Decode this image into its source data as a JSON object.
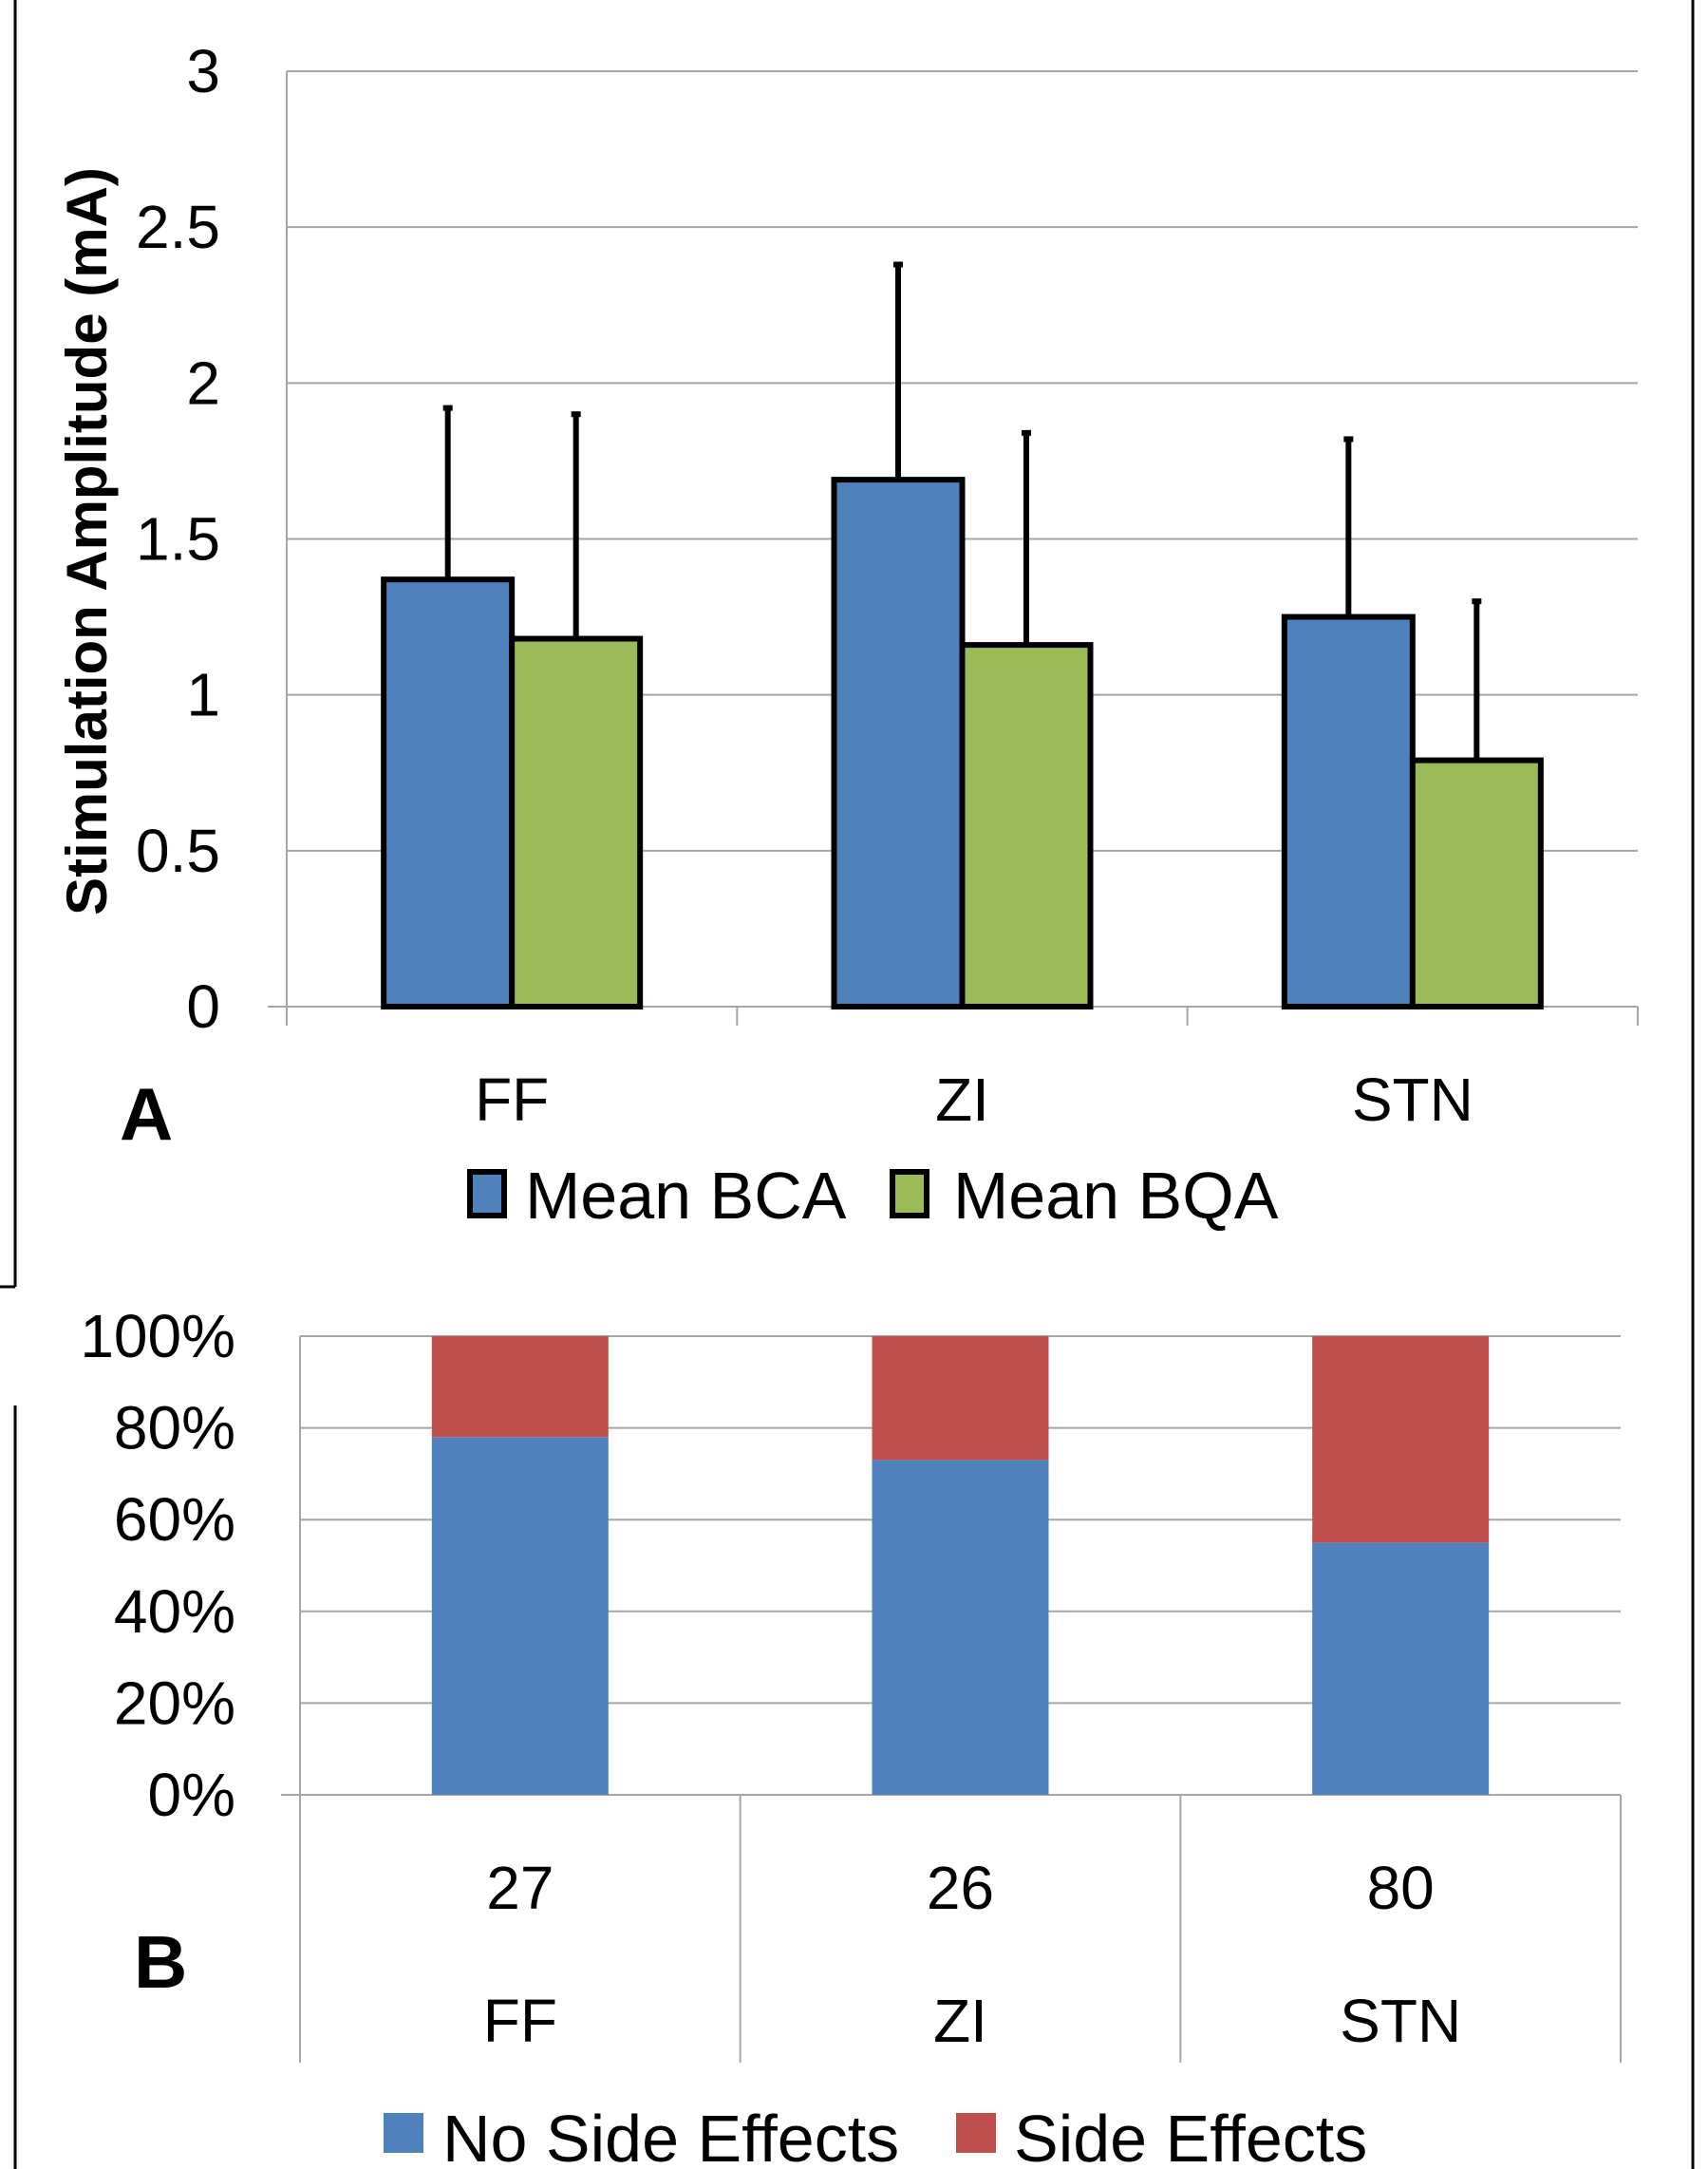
{
  "chart_data": [
    {
      "panel": "A",
      "type": "bar",
      "ylabel": "Stimulation Amplitude (mA)",
      "ylim": [
        0,
        3
      ],
      "yticks": [
        "0",
        "0.5",
        "1",
        "1.5",
        "2",
        "2.5",
        "3"
      ],
      "grid": true,
      "legend_position": "bottom",
      "categories": [
        "FF",
        "ZI",
        "STN"
      ],
      "series": [
        {
          "name": "Mean BCA",
          "color": "#4F81BD",
          "values": [
            1.37,
            1.69,
            1.25
          ],
          "error_upper": [
            0.55,
            0.69,
            0.57
          ]
        },
        {
          "name": "Mean BQA",
          "color": "#9BBB59",
          "values": [
            1.18,
            1.16,
            0.79
          ],
          "error_upper": [
            0.72,
            0.68,
            0.51
          ]
        }
      ]
    },
    {
      "panel": "B",
      "type": "bar",
      "stacked": true,
      "ylim": [
        0,
        100
      ],
      "yticks": [
        "0%",
        "20%",
        "40%",
        "60%",
        "80%",
        "100%"
      ],
      "grid": true,
      "legend_position": "bottom",
      "categories": [
        "FF",
        "ZI",
        "STN"
      ],
      "counts": [
        "27",
        "26",
        "80"
      ],
      "series": [
        {
          "name": "No Side Effects",
          "color": "#4F81BD",
          "values": [
            78,
            73,
            55
          ]
        },
        {
          "name": "Side Effects",
          "color": "#C0504D",
          "values": [
            22,
            27,
            45
          ]
        }
      ]
    }
  ]
}
